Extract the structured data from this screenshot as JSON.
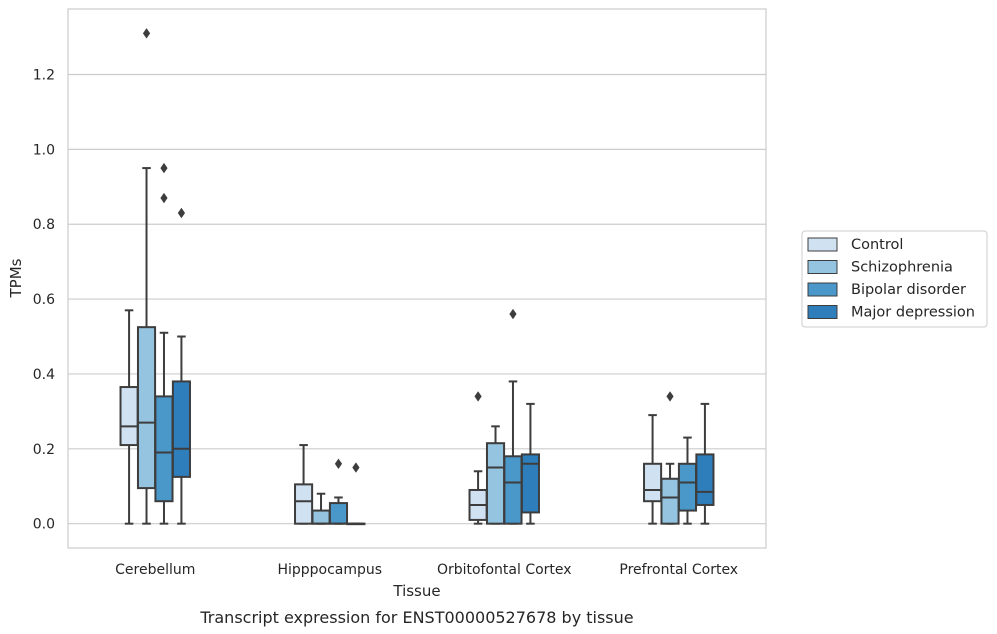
{
  "chart_data": {
    "type": "boxplot",
    "caption": "Transcript expression for ENST00000527678 by tissue",
    "xlabel": "Tissue",
    "ylabel": "TPMs",
    "ylim": [
      -0.065,
      1.375
    ],
    "yticks": [
      0.0,
      0.2,
      0.4,
      0.6,
      0.8,
      1.0,
      1.2
    ],
    "ytick_labels": [
      "0.0",
      "0.2",
      "0.4",
      "0.6",
      "0.8",
      "1.0",
      "1.2"
    ],
    "grid": "horizontal",
    "legend_placement": "right",
    "categories": [
      "Cerebellum",
      "Hipppocampus",
      "Orbitofontal Cortex",
      "Prefrontal Cortex"
    ],
    "series": [
      {
        "name": "Control",
        "color": "#d0e1f2",
        "boxes": [
          {
            "whislo": 0.0,
            "q1": 0.21,
            "med": 0.26,
            "q3": 0.365,
            "whishi": 0.57,
            "fliers": []
          },
          {
            "whislo": 0.0,
            "q1": 0.0,
            "med": 0.06,
            "q3": 0.105,
            "whishi": 0.21,
            "fliers": []
          },
          {
            "whislo": 0.0,
            "q1": 0.01,
            "med": 0.05,
            "q3": 0.09,
            "whishi": 0.14,
            "fliers": [
              0.34
            ]
          },
          {
            "whislo": 0.0,
            "q1": 0.06,
            "med": 0.09,
            "q3": 0.16,
            "whishi": 0.29,
            "fliers": []
          }
        ]
      },
      {
        "name": "Schizophrenia",
        "color": "#94c4df",
        "boxes": [
          {
            "whislo": 0.0,
            "q1": 0.095,
            "med": 0.27,
            "q3": 0.525,
            "whishi": 0.95,
            "fliers": [
              1.31
            ]
          },
          {
            "whislo": 0.0,
            "q1": 0.0,
            "med": 0.0,
            "q3": 0.035,
            "whishi": 0.08,
            "fliers": []
          },
          {
            "whislo": 0.0,
            "q1": 0.0,
            "med": 0.15,
            "q3": 0.215,
            "whishi": 0.26,
            "fliers": []
          },
          {
            "whislo": 0.0,
            "q1": 0.0,
            "med": 0.07,
            "q3": 0.12,
            "whishi": 0.16,
            "fliers": [
              0.34
            ]
          }
        ]
      },
      {
        "name": "Bipolar disorder",
        "color": "#4a98c9",
        "boxes": [
          {
            "whislo": 0.0,
            "q1": 0.06,
            "med": 0.19,
            "q3": 0.34,
            "whishi": 0.51,
            "fliers": [
              0.87,
              0.95
            ]
          },
          {
            "whislo": 0.0,
            "q1": 0.0,
            "med": 0.0,
            "q3": 0.055,
            "whishi": 0.07,
            "fliers": [
              0.16
            ]
          },
          {
            "whislo": 0.0,
            "q1": 0.0,
            "med": 0.11,
            "q3": 0.18,
            "whishi": 0.38,
            "fliers": [
              0.56
            ]
          },
          {
            "whislo": 0.0,
            "q1": 0.035,
            "med": 0.11,
            "q3": 0.16,
            "whishi": 0.23,
            "fliers": []
          }
        ]
      },
      {
        "name": "Major depression",
        "color": "#2e7ebc",
        "boxes": [
          {
            "whislo": 0.0,
            "q1": 0.125,
            "med": 0.2,
            "q3": 0.38,
            "whishi": 0.5,
            "fliers": [
              0.83
            ]
          },
          {
            "whislo": 0.0,
            "q1": 0.0,
            "med": 0.0,
            "q3": 0.0,
            "whishi": 0.0,
            "fliers": [
              0.15
            ]
          },
          {
            "whislo": 0.0,
            "q1": 0.03,
            "med": 0.16,
            "q3": 0.185,
            "whishi": 0.32,
            "fliers": []
          },
          {
            "whislo": 0.0,
            "q1": 0.05,
            "med": 0.085,
            "q3": 0.185,
            "whishi": 0.32,
            "fliers": []
          }
        ]
      }
    ]
  }
}
